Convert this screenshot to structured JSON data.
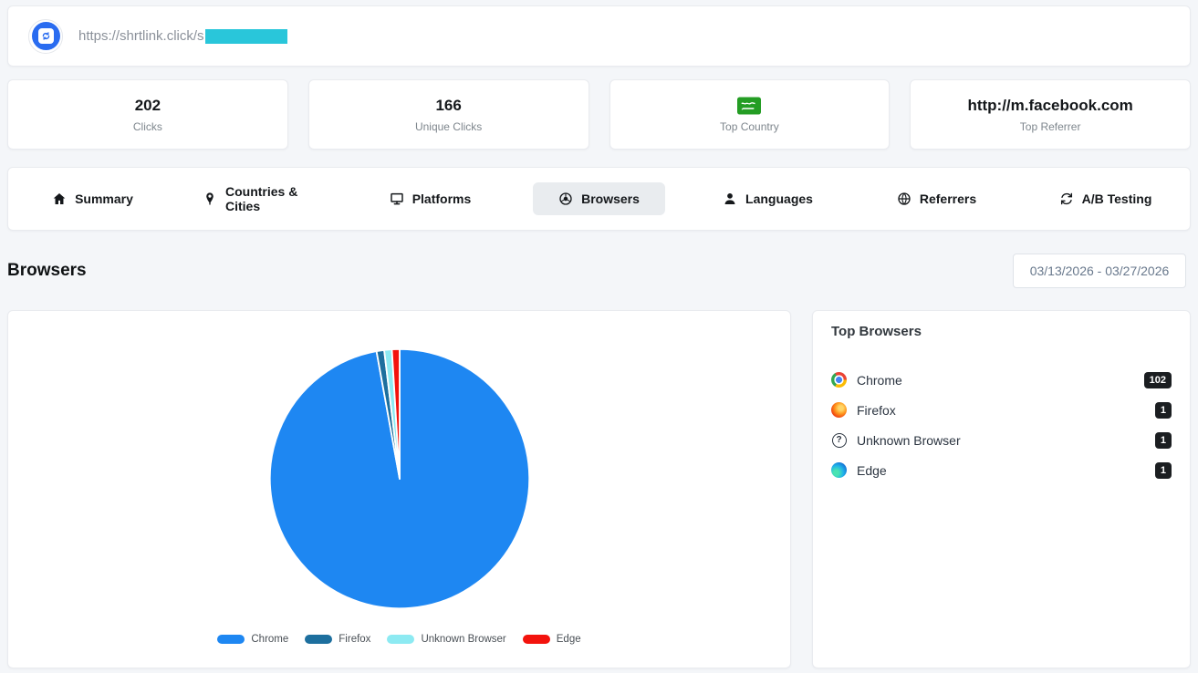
{
  "colors": {
    "accent_blue": "#1e87f2",
    "redaction": "#29c6da",
    "badge_bg": "#1b1e21",
    "active_tab_bg": "#e9ecef",
    "flag_green": "#249d24"
  },
  "topbar": {
    "url": "https://shrtlink.click/s"
  },
  "stats": [
    {
      "value": "202",
      "label": "Clicks"
    },
    {
      "value": "166",
      "label": "Unique Clicks"
    },
    {
      "value": "",
      "label": "Top Country"
    },
    {
      "value": "http://m.facebook.com",
      "label": "Top Referrer"
    }
  ],
  "tabs": [
    {
      "label": "Summary",
      "icon": "home-icon",
      "active": false
    },
    {
      "label": "Countries & Cities",
      "icon": "map-pin-icon",
      "active": false
    },
    {
      "label": "Platforms",
      "icon": "monitor-icon",
      "active": false
    },
    {
      "label": "Browsers",
      "icon": "browser-icon",
      "active": true
    },
    {
      "label": "Languages",
      "icon": "person-icon",
      "active": false
    },
    {
      "label": "Referrers",
      "icon": "globe-icon",
      "active": false
    },
    {
      "label": "A/B Testing",
      "icon": "ab-testing-icon",
      "active": false
    }
  ],
  "section": {
    "title": "Browsers",
    "date_range": "03/13/2026 - 03/27/2026"
  },
  "chart_data": {
    "type": "pie",
    "title": "",
    "labels": [
      "Chrome",
      "Firefox",
      "Unknown Browser",
      "Edge"
    ],
    "values": [
      102,
      1,
      1,
      1
    ],
    "colors": [
      "#1e87f2",
      "#1d6f9e",
      "#8deaf2",
      "#f3130d"
    ],
    "legend_position": "bottom",
    "start_angle_deg": 0,
    "direction": "clockwise"
  },
  "top_browsers": {
    "title": "Top Browsers",
    "items": [
      {
        "name": "Chrome",
        "count": "102",
        "icon": "chrome-icon"
      },
      {
        "name": "Firefox",
        "count": "1",
        "icon": "firefox-icon"
      },
      {
        "name": "Unknown Browser",
        "count": "1",
        "icon": "unknown-browser-icon"
      },
      {
        "name": "Edge",
        "count": "1",
        "icon": "edge-icon"
      }
    ]
  }
}
